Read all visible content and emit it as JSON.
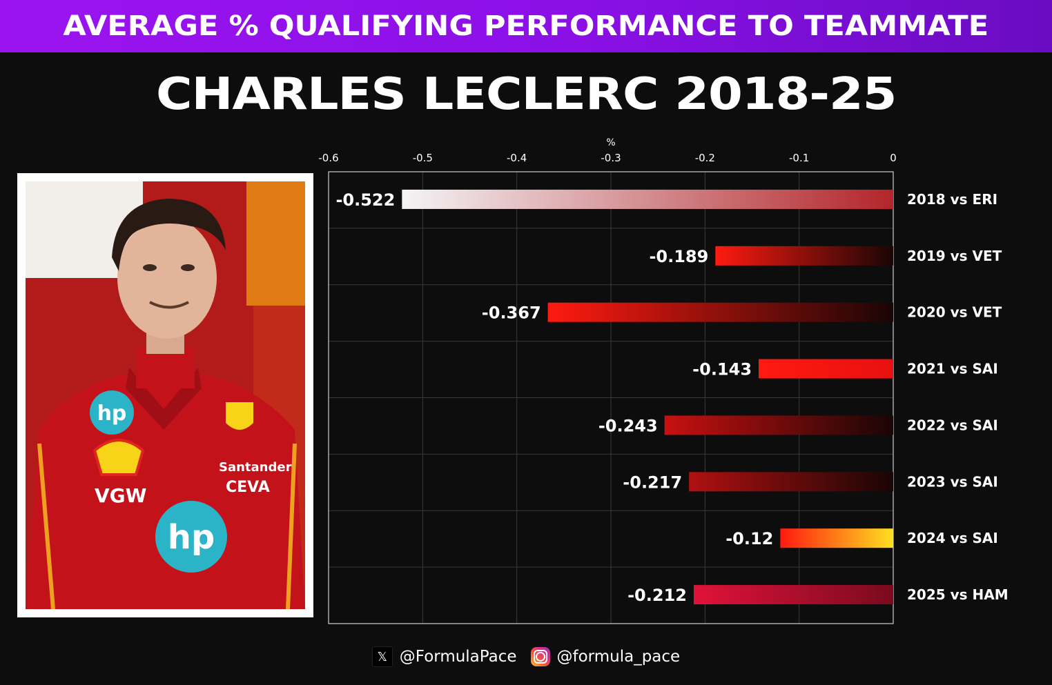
{
  "banner": {
    "title": "AVERAGE % QUALIFYING PERFORMANCE TO TEAMMATE"
  },
  "header": {
    "title": "CHARLES LECLERC 2018-25"
  },
  "colors": {
    "banner_start": "#9b14f0",
    "banner_end": "#6a0cc2",
    "background": "#0d0d0d",
    "grid": "#3a3a3a"
  },
  "chart_data": {
    "type": "bar",
    "orientation": "horizontal",
    "title": "CHARLES LECLERC 2018-25",
    "xlabel": "%",
    "ylabel": "",
    "xlim": [
      -0.6,
      0
    ],
    "x_ticks": [
      "-0.6",
      "-0.5",
      "-0.4",
      "-0.3",
      "-0.2",
      "-0.1",
      "0"
    ],
    "grid": true,
    "categories": [
      "2018 vs ERI",
      "2019 vs VET",
      "2020 vs VET",
      "2021 vs SAI",
      "2022 vs SAI",
      "2023 vs SAI",
      "2024 vs SAI",
      "2025 vs HAM"
    ],
    "values": [
      -0.522,
      -0.189,
      -0.367,
      -0.143,
      -0.243,
      -0.217,
      -0.12,
      -0.212
    ],
    "value_labels": [
      "-0.522",
      "-0.189",
      "-0.367",
      "-0.143",
      "-0.243",
      "-0.217",
      "-0.12",
      "-0.212"
    ],
    "bar_gradients": [
      [
        "#f4f4f6",
        "#b3252a"
      ],
      [
        "#ff1a10",
        "#1a0505"
      ],
      [
        "#ff1a10",
        "#1a0505"
      ],
      [
        "#ff1a10",
        "#e81010"
      ],
      [
        "#c81010",
        "#1a0505"
      ],
      [
        "#b01010",
        "#1a0505"
      ],
      [
        "#ff1a10",
        "#ffe020"
      ],
      [
        "#e0123a",
        "#7a0a1e"
      ]
    ]
  },
  "footer": {
    "x_handle": "@FormulaPace",
    "instagram_handle": "@formula_pace",
    "x_icon_glyph": "𝕏"
  }
}
